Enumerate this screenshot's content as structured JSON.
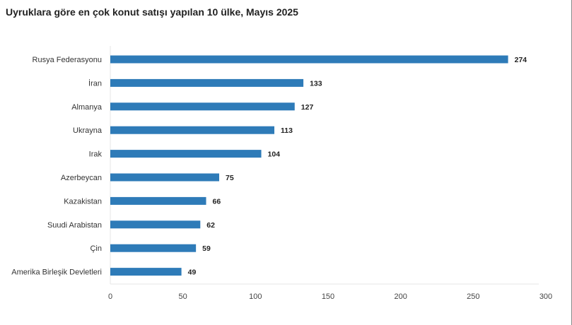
{
  "chart_data": {
    "type": "bar",
    "orientation": "horizontal",
    "title": "Uyruklara göre en çok konut satışı yapılan 10 ülke, Mayıs 2025",
    "categories": [
      "Rusya Federasyonu",
      "İran",
      "Almanya",
      "Ukrayna",
      "Irak",
      "Azerbeycan",
      "Kazakistan",
      "Suudi Arabistan",
      "Çin",
      "Amerika Birleşik Devletleri"
    ],
    "values": [
      274,
      133,
      127,
      113,
      104,
      75,
      66,
      62,
      59,
      49
    ],
    "xlim": [
      0,
      300
    ],
    "xticks": [
      0,
      50,
      100,
      150,
      200,
      250,
      300
    ],
    "grid": false,
    "bar_color": "#2e7bb8",
    "data_labels": true
  }
}
